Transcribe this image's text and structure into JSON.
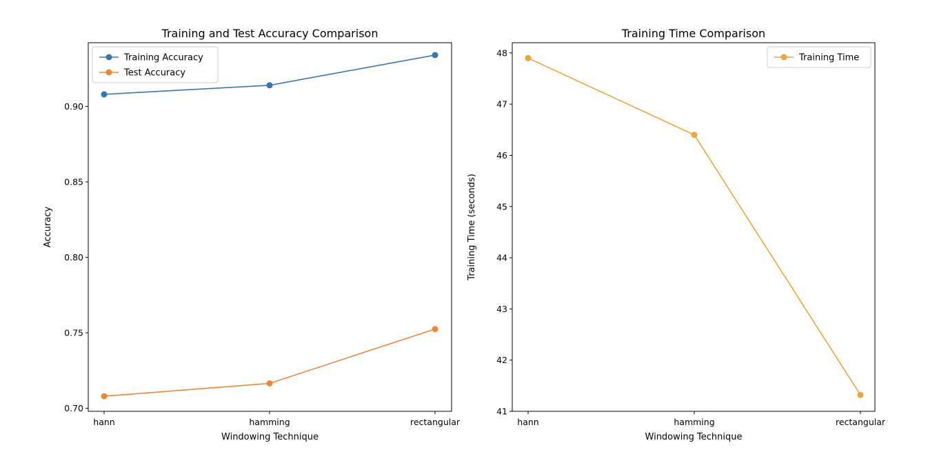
{
  "chart_data": [
    {
      "type": "line",
      "title": "Training and Test Accuracy Comparison",
      "xlabel": "Windowing Technique",
      "ylabel": "Accuracy",
      "categories": [
        "hann",
        "hamming",
        "rectangular"
      ],
      "ylim": [
        0.698,
        0.9422
      ],
      "yticks": [
        0.7,
        0.75,
        0.8,
        0.85,
        0.9
      ],
      "ytick_labels": [
        "0.70",
        "0.75",
        "0.80",
        "0.85",
        "0.90"
      ],
      "legend": "upper-left",
      "grid": false,
      "series": [
        {
          "name": "Training Accuracy",
          "values": [
            0.908,
            0.914,
            0.934
          ],
          "color": "#3a75af"
        },
        {
          "name": "Test Accuracy",
          "values": [
            0.708,
            0.7165,
            0.7525
          ],
          "color": "#ef8636"
        }
      ]
    },
    {
      "type": "line",
      "title": "Training Time Comparison",
      "xlabel": "Windowing Technique",
      "ylabel": "Training Time (seconds)",
      "categories": [
        "hann",
        "hamming",
        "rectangular"
      ],
      "ylim": [
        41.0,
        48.2
      ],
      "yticks": [
        41,
        42,
        43,
        44,
        45,
        46,
        47,
        48
      ],
      "ytick_labels": [
        "41",
        "42",
        "43",
        "44",
        "45",
        "46",
        "47",
        "48"
      ],
      "legend": "upper-right",
      "grid": false,
      "series": [
        {
          "name": "Training Time",
          "values": [
            47.9,
            46.4,
            41.32
          ],
          "color": "#f0a43a"
        }
      ]
    }
  ]
}
